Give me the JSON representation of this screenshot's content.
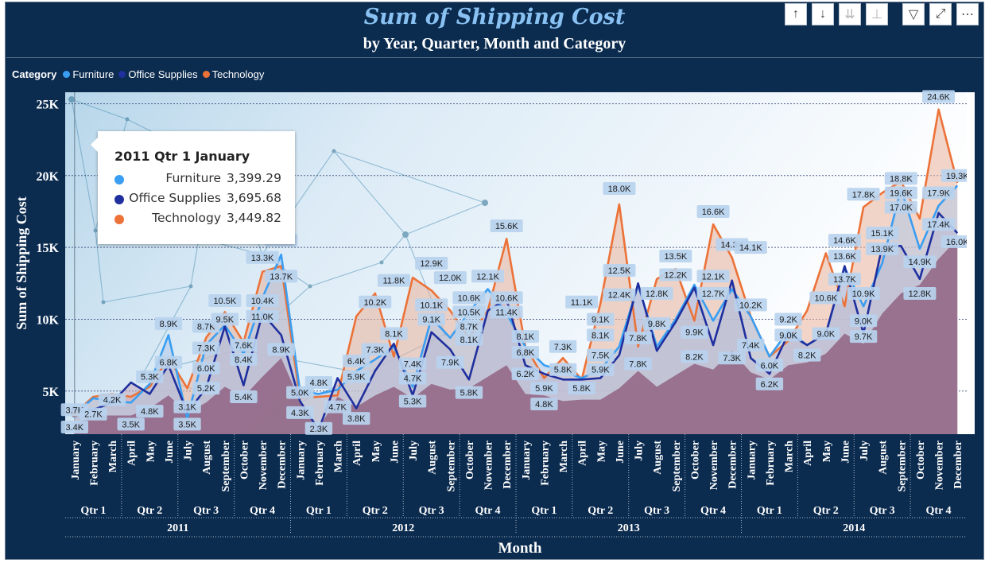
{
  "header": {
    "title": "Sum of Shipping Cost",
    "subtitle": "by Year, Quarter, Month and Category"
  },
  "toolbar": [
    {
      "name": "drill-up-icon",
      "glyph": "↑",
      "enabled": true
    },
    {
      "name": "drill-down-icon",
      "glyph": "↓",
      "enabled": true
    },
    {
      "name": "expand-next-level-icon",
      "glyph": "⇊",
      "enabled": false
    },
    {
      "name": "expand-hierarchy-icon",
      "glyph": "⊥",
      "enabled": false
    },
    {
      "name": "filter-icon",
      "glyph": "▽",
      "enabled": true
    },
    {
      "name": "focus-mode-icon",
      "glyph": "⤢",
      "enabled": true
    },
    {
      "name": "more-options-icon",
      "glyph": "⋯",
      "enabled": true
    }
  ],
  "legend": {
    "title": "Category",
    "items": [
      {
        "label": "Furniture",
        "color": "#3a9ef2"
      },
      {
        "label": "Office Supplies",
        "color": "#1f2f9e"
      },
      {
        "label": "Technology",
        "color": "#ec7238"
      }
    ]
  },
  "tooltip": {
    "title": "2011 Qtr 1 January",
    "rows": [
      {
        "label": "Furniture",
        "value": "3,399.29",
        "color": "#3a9ef2"
      },
      {
        "label": "Office Supplies",
        "value": "3,695.68",
        "color": "#1f2f9e"
      },
      {
        "label": "Technology",
        "value": "3,449.82",
        "color": "#ec7238"
      }
    ]
  },
  "chart_data": {
    "type": "area",
    "xlabel": "Month",
    "ylabel": "Sum of Shipping Cost",
    "ylim": [
      2000,
      25800
    ],
    "yticks": [
      5000,
      10000,
      15000,
      20000,
      25000
    ],
    "ytick_labels": [
      "5K",
      "10K",
      "15K",
      "20K",
      "25K"
    ],
    "grid": true,
    "legend_position": "top-left",
    "months": [
      "January",
      "February",
      "March",
      "April",
      "May",
      "June",
      "July",
      "August",
      "September",
      "October",
      "November",
      "December"
    ],
    "quarters": [
      "Qtr 1",
      "Qtr 2",
      "Qtr 3",
      "Qtr 4"
    ],
    "years": [
      "2011",
      "2012",
      "2013",
      "2014"
    ],
    "series": [
      {
        "name": "Furniture",
        "color": "#3a9ef2",
        "values": [
          3399,
          4500,
          4300,
          4200,
          5500,
          8900,
          3100,
          8200,
          9600,
          7600,
          11500,
          14500,
          5000,
          4800,
          5100,
          6400,
          7200,
          8100,
          5300,
          10100,
          8700,
          10500,
          12100,
          10400,
          8100,
          6800,
          6400,
          5900,
          6500,
          8100,
          12400,
          8100,
          10000,
          12400,
          9900,
          12100,
          10200,
          7400,
          9200,
          8200,
          9000,
          13600,
          10900,
          13900,
          19100,
          14900,
          17900,
          19300
        ]
      },
      {
        "name": "Office Supplies",
        "color": "#1f2f9e",
        "values": [
          3696,
          3700,
          4200,
          5600,
          4800,
          6800,
          3500,
          5200,
          9500,
          5400,
          10400,
          8900,
          4300,
          2300,
          5900,
          3800,
          6400,
          8300,
          4700,
          9100,
          7900,
          5800,
          10600,
          11400,
          6800,
          6200,
          5800,
          5800,
          5900,
          7500,
          12500,
          7800,
          9800,
          12200,
          8200,
          12700,
          7300,
          6200,
          9000,
          8200,
          9000,
          13700,
          9000,
          15100,
          15100,
          12800,
          17400,
          16000
        ]
      },
      {
        "name": "Technology",
        "color": "#ec7238",
        "values": [
          3450,
          4600,
          4800,
          4600,
          5300,
          7300,
          5200,
          8700,
          10500,
          8400,
          13300,
          13700,
          4500,
          4600,
          4700,
          10200,
          11800,
          7400,
          12900,
          12000,
          10600,
          8700,
          10600,
          15600,
          8100,
          5900,
          7300,
          5800,
          11100,
          18000,
          8100,
          12800,
          13500,
          9900,
          16600,
          14300,
          10200,
          7400,
          8500,
          10600,
          14600,
          10900,
          17800,
          18800,
          19600,
          17000,
          24600,
          19500
        ]
      },
      {
        "name": "",
        "color": "#8e5c7a",
        "values": [
          2700,
          3300,
          3300,
          3300,
          3800,
          4700,
          3500,
          4200,
          5300,
          4600,
          6000,
          7300,
          4300,
          2400,
          4600,
          3900,
          4700,
          5300,
          4500,
          5500,
          5100,
          5200,
          6000,
          6800,
          4800,
          4700,
          4300,
          4400,
          4400,
          5200,
          6400,
          5300,
          6100,
          6900,
          6500,
          7800,
          6300,
          5800,
          6800,
          7000,
          7600,
          9000,
          8300,
          10400,
          11800,
          12400,
          14200,
          15600
        ]
      }
    ],
    "data_labels": [
      {
        "text": "3.7K",
        "i": 0,
        "v": 3700
      },
      {
        "text": "3.4K",
        "i": 0,
        "v": 2500
      },
      {
        "text": "2.7K",
        "i": 1,
        "v": 3400
      },
      {
        "text": "4.2K",
        "i": 2,
        "v": 4400
      },
      {
        "text": "3.5K",
        "i": 3,
        "v": 2700
      },
      {
        "text": "5.3K",
        "i": 4,
        "v": 6000
      },
      {
        "text": "4.8K",
        "i": 4,
        "v": 3600
      },
      {
        "text": "6.8K",
        "i": 5,
        "v": 7000
      },
      {
        "text": "8.9K",
        "i": 5,
        "v": 9700
      },
      {
        "text": "3.1K",
        "i": 6,
        "v": 3900
      },
      {
        "text": "3.5K",
        "i": 6,
        "v": 2700
      },
      {
        "text": "8.7K",
        "i": 7,
        "v": 9500
      },
      {
        "text": "7.3K",
        "i": 7,
        "v": 8000
      },
      {
        "text": "6.0K",
        "i": 7,
        "v": 6600
      },
      {
        "text": "5.2K",
        "i": 7,
        "v": 5200
      },
      {
        "text": "10.5K",
        "i": 8,
        "v": 11300
      },
      {
        "text": "9.5K",
        "i": 8,
        "v": 10000
      },
      {
        "text": "7.6K",
        "i": 9,
        "v": 8200
      },
      {
        "text": "8.4K",
        "i": 9,
        "v": 7200
      },
      {
        "text": "5.4K",
        "i": 9,
        "v": 4600
      },
      {
        "text": "13.3K",
        "i": 10,
        "v": 14300
      },
      {
        "text": "10.4K",
        "i": 10,
        "v": 11300
      },
      {
        "text": "11.0K",
        "i": 10,
        "v": 10200
      },
      {
        "text": "14.5K",
        "i": 11,
        "v": 15500
      },
      {
        "text": "13.7K",
        "i": 11,
        "v": 13000
      },
      {
        "text": "8.9K",
        "i": 11,
        "v": 7900
      },
      {
        "text": "5.0K",
        "i": 12,
        "v": 4900
      },
      {
        "text": "4.3K",
        "i": 12,
        "v": 3500
      },
      {
        "text": "4.8K",
        "i": 13,
        "v": 5600
      },
      {
        "text": "2.3K",
        "i": 13,
        "v": 2400
      },
      {
        "text": "4.7K",
        "i": 14,
        "v": 3900
      },
      {
        "text": "6.4K",
        "i": 15,
        "v": 7100
      },
      {
        "text": "5.9K",
        "i": 15,
        "v": 6000
      },
      {
        "text": "3.8K",
        "i": 15,
        "v": 3100
      },
      {
        "text": "10.2K",
        "i": 16,
        "v": 11200
      },
      {
        "text": "7.3K",
        "i": 16,
        "v": 7900
      },
      {
        "text": "11.8K",
        "i": 17,
        "v": 12700
      },
      {
        "text": "8.1K",
        "i": 17,
        "v": 9000
      },
      {
        "text": "7.4K",
        "i": 18,
        "v": 6900
      },
      {
        "text": "4.7K",
        "i": 18,
        "v": 5900
      },
      {
        "text": "5.3K",
        "i": 18,
        "v": 4300
      },
      {
        "text": "12.9K",
        "i": 19,
        "v": 13900
      },
      {
        "text": "10.1K",
        "i": 19,
        "v": 11000
      },
      {
        "text": "9.1K",
        "i": 19,
        "v": 10000
      },
      {
        "text": "12.0K",
        "i": 20,
        "v": 12900
      },
      {
        "text": "7.9K",
        "i": 20,
        "v": 7000
      },
      {
        "text": "10.5K",
        "i": 21,
        "v": 10500
      },
      {
        "text": "8.7K",
        "i": 21,
        "v": 9500
      },
      {
        "text": "10.6K",
        "i": 21,
        "v": 11500
      },
      {
        "text": "8.1K",
        "i": 21,
        "v": 8600
      },
      {
        "text": "5.8K",
        "i": 21,
        "v": 4900
      },
      {
        "text": "12.1K",
        "i": 22,
        "v": 13000
      },
      {
        "text": "10.6K",
        "i": 23,
        "v": 11500
      },
      {
        "text": "15.6K",
        "i": 23,
        "v": 16500
      },
      {
        "text": "11.4K",
        "i": 23,
        "v": 10500
      },
      {
        "text": "8.1K",
        "i": 24,
        "v": 8800
      },
      {
        "text": "6.8K",
        "i": 24,
        "v": 7700
      },
      {
        "text": "6.2K",
        "i": 24,
        "v": 6200
      },
      {
        "text": "5.9K",
        "i": 25,
        "v": 5200
      },
      {
        "text": "4.8K",
        "i": 25,
        "v": 4100
      },
      {
        "text": "7.3K",
        "i": 26,
        "v": 8100
      },
      {
        "text": "5.8K",
        "i": 26,
        "v": 6500
      },
      {
        "text": "11.1K",
        "i": 27,
        "v": 11200
      },
      {
        "text": "5.8K",
        "i": 27,
        "v": 5200
      },
      {
        "text": "9.1K",
        "i": 28,
        "v": 10000
      },
      {
        "text": "8.1K",
        "i": 28,
        "v": 8900
      },
      {
        "text": "7.5K",
        "i": 28,
        "v": 7500
      },
      {
        "text": "5.9K",
        "i": 28,
        "v": 6500
      },
      {
        "text": "18.0K",
        "i": 29,
        "v": 19100
      },
      {
        "text": "12.5K",
        "i": 29,
        "v": 13400
      },
      {
        "text": "12.4K",
        "i": 29,
        "v": 11700
      },
      {
        "text": "7.8K",
        "i": 30,
        "v": 8700
      },
      {
        "text": "7.8K",
        "i": 30,
        "v": 6900
      },
      {
        "text": "12.8K",
        "i": 31,
        "v": 11800
      },
      {
        "text": "9.8K",
        "i": 31,
        "v": 9700
      },
      {
        "text": "13.5K",
        "i": 32,
        "v": 14400
      },
      {
        "text": "12.2K",
        "i": 32,
        "v": 13100
      },
      {
        "text": "9.9K",
        "i": 33,
        "v": 9100
      },
      {
        "text": "8.2K",
        "i": 33,
        "v": 7400
      },
      {
        "text": "16.6K",
        "i": 34,
        "v": 17500
      },
      {
        "text": "12.1K",
        "i": 34,
        "v": 13000
      },
      {
        "text": "12.7K",
        "i": 34,
        "v": 11800
      },
      {
        "text": "14.3K",
        "i": 35,
        "v": 15200
      },
      {
        "text": "7.3K",
        "i": 35,
        "v": 7300
      },
      {
        "text": "14.1K",
        "i": 36,
        "v": 15000
      },
      {
        "text": "10.2K",
        "i": 36,
        "v": 11000
      },
      {
        "text": "7.4K",
        "i": 36,
        "v": 8200
      },
      {
        "text": "6.0K",
        "i": 37,
        "v": 6800
      },
      {
        "text": "6.2K",
        "i": 37,
        "v": 5500
      },
      {
        "text": "9.2K",
        "i": 38,
        "v": 10000
      },
      {
        "text": "9.0K",
        "i": 38,
        "v": 8900
      },
      {
        "text": "8.2K",
        "i": 39,
        "v": 7500
      },
      {
        "text": "10.6K",
        "i": 40,
        "v": 11500
      },
      {
        "text": "9.0K",
        "i": 40,
        "v": 9000
      },
      {
        "text": "14.6K",
        "i": 41,
        "v": 15500
      },
      {
        "text": "13.6K",
        "i": 41,
        "v": 14400
      },
      {
        "text": "13.7K",
        "i": 41,
        "v": 12800
      },
      {
        "text": "17.8K",
        "i": 42,
        "v": 18700
      },
      {
        "text": "10.9K",
        "i": 42,
        "v": 11800
      },
      {
        "text": "9.0K",
        "i": 42,
        "v": 9900
      },
      {
        "text": "9.7K",
        "i": 42,
        "v": 8800
      },
      {
        "text": "15.1K",
        "i": 43,
        "v": 16000
      },
      {
        "text": "13.9K",
        "i": 43,
        "v": 14900
      },
      {
        "text": "18.8K",
        "i": 44,
        "v": 19800
      },
      {
        "text": "19.6K",
        "i": 44,
        "v": 18800
      },
      {
        "text": "17.0K",
        "i": 44,
        "v": 17800
      },
      {
        "text": "14.9K",
        "i": 45,
        "v": 14000
      },
      {
        "text": "12.8K",
        "i": 45,
        "v": 11800
      },
      {
        "text": "24.6K",
        "i": 46,
        "v": 25500
      },
      {
        "text": "17.9K",
        "i": 46,
        "v": 18800
      },
      {
        "text": "17.4K",
        "i": 46,
        "v": 16600
      },
      {
        "text": "19.3K",
        "i": 47,
        "v": 20000
      },
      {
        "text": "16.0K",
        "i": 47,
        "v": 15400
      }
    ]
  }
}
